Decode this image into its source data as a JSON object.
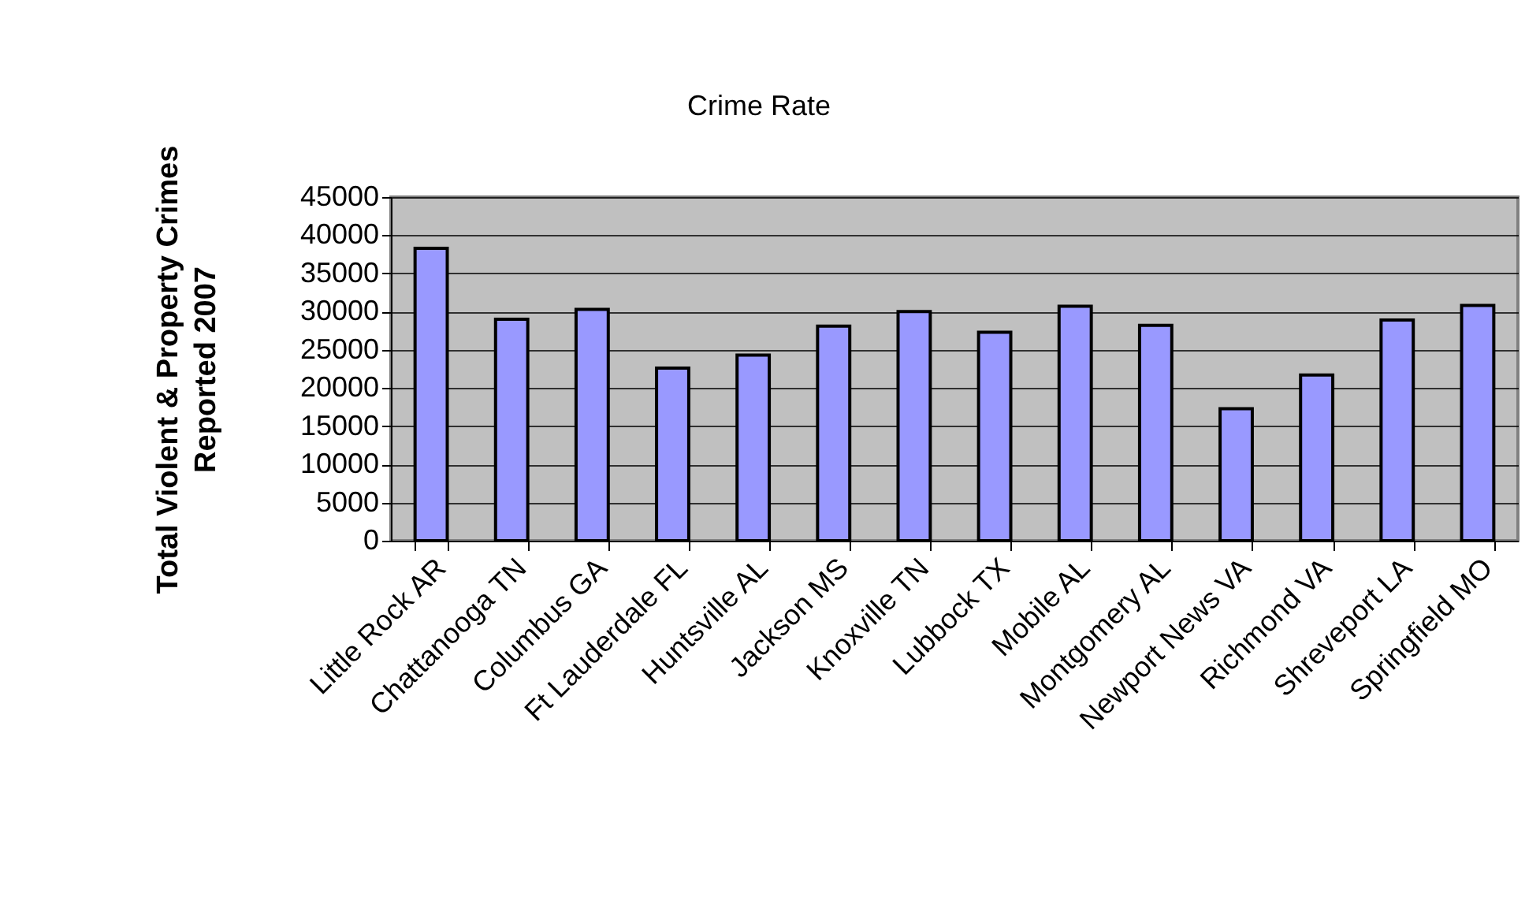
{
  "chart_data": {
    "type": "bar",
    "title": "Crime Rate",
    "ylabel": "Total Violent & Property Crimes\nReported 2007",
    "categories": [
      "Little Rock AR",
      "Chattanooga TN",
      "Columbus GA",
      "Ft Lauderdale FL",
      "Huntsville AL",
      "Jackson MS",
      "Knoxville TN",
      "Lubbock TX",
      "Mobile AL",
      "Montgomery AL",
      "Newport News VA",
      "Richmond VA",
      "Shreveport LA",
      "Springfield MO"
    ],
    "values": [
      38300,
      29000,
      30300,
      22600,
      24300,
      28100,
      30000,
      27300,
      30700,
      28200,
      17300,
      21700,
      28900,
      30800
    ],
    "color": "#9999ff",
    "ylim": [
      0,
      45000
    ],
    "yticks": [
      0,
      5000,
      10000,
      15000,
      20000,
      25000,
      30000,
      35000,
      40000,
      45000
    ],
    "grid": true
  }
}
